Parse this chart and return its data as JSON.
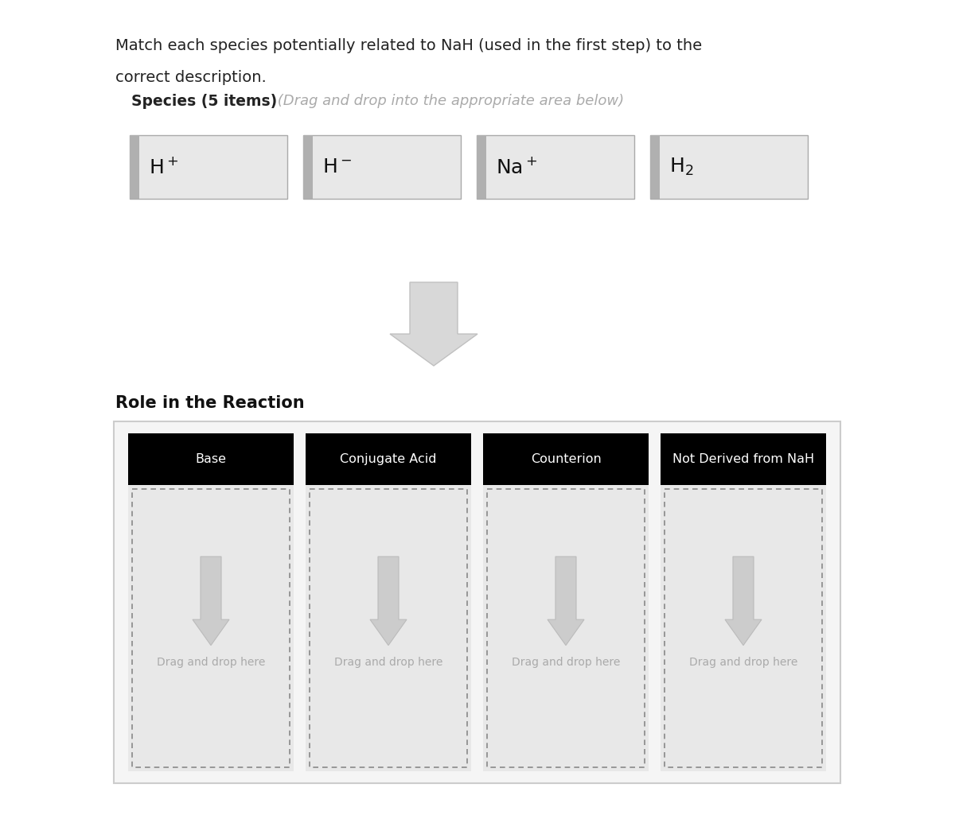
{
  "title_line1": "Match each species potentially related to NaH (used in the first step) to the",
  "title_line2": "correct description.",
  "species_label_bold": "Species (5 items)",
  "species_label_italic": " (Drag and drop into the appropriate area below)",
  "role_label": "Role in the Reaction",
  "categories": [
    "Base",
    "Conjugate Acid",
    "Counterion",
    "Not Derived from NaH"
  ],
  "drag_text": "Drag and drop here",
  "bg_color": "#ffffff",
  "box_bg": "#e8e8e8",
  "box_border": "#aaaaaa",
  "black_header": "#000000",
  "header_text": "#ffffff",
  "arrow_color": "#cccccc",
  "dashed_border": "#888888",
  "outer_border": "#cccccc",
  "drag_text_color": "#aaaaaa",
  "title_color": "#222222",
  "role_label_color": "#111111",
  "stripe_color": "#b0b0b0",
  "species_text_color": "#111111"
}
